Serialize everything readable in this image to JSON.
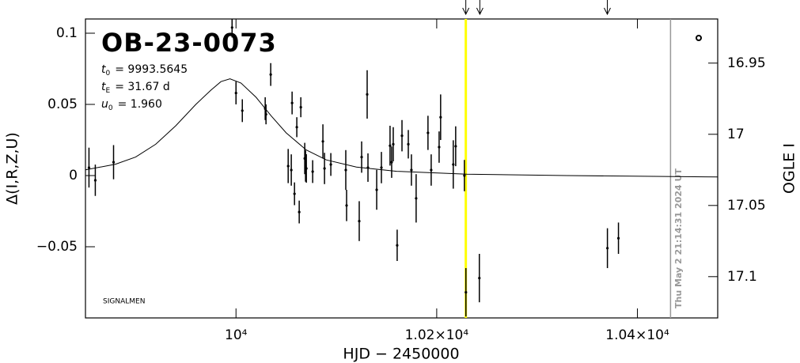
{
  "chart_data": {
    "type": "scatter",
    "title": "OB-23-0073",
    "params": [
      {
        "symbol": "t",
        "subscript": "0",
        "text": "= 9993.5645"
      },
      {
        "symbol": "t",
        "subscript": "E",
        "text": "= 31.67 d"
      },
      {
        "symbol": "u",
        "subscript": "0",
        "text": "= 1.960"
      }
    ],
    "note": "SIGNALMEN",
    "timestamp": "Thu May  2 21:14:31 2024 UT",
    "x_label": "HJD − 2450000",
    "y_label": "Δ(I,R,Z,U)",
    "y2_label": "OGLE I",
    "color": "#000000",
    "x": [
      9853.5,
      9859.8,
      9878,
      9996.1,
      10000,
      10006.3,
      10029.1,
      10029.9,
      10034.6,
      10052,
      10055.1,
      10058.3,
      10063,
      10055.9,
      10060.6,
      10064.6,
      10068.5,
      10069.3,
      10070.1,
      10076.4,
      10086.6,
      10088.2,
      10094.5,
      10109.4,
      10110.2,
      10122.8,
      10125.2,
      10130.7,
      10131.5,
      10140.2,
      10144.9,
      10153.5,
      10155.1,
      10156.7,
      10160.6,
      10165.4,
      10171.7,
      10174.8,
      10179.5,
      10191.3,
      10194.5,
      10202.4,
      10203.9,
      10216.5,
      10218.9,
      10227.6,
      10229.1,
      10242.5,
      10370.1,
      10381.1
    ],
    "values": [
      0.0056,
      -0.0033,
      0.0094,
      0.104,
      0.058,
      0.0456,
      0.047,
      0.043,
      0.071,
      0.0067,
      0.0039,
      -0.0128,
      -0.0256,
      0.051,
      0.034,
      0.048,
      0.012,
      0.0067,
      0.005,
      0.0028,
      0.024,
      0.005,
      0.0078,
      0.0039,
      -0.021,
      -0.032,
      0.013,
      0.057,
      0.0056,
      -0.01,
      0.0056,
      0.021,
      0.0094,
      0.022,
      -0.049,
      0.028,
      0.022,
      0.0039,
      -0.016,
      0.03,
      0.0039,
      0.02,
      0.041,
      0.0078,
      0.0206,
      0,
      -0.082,
      -0.072,
      -0.051,
      -0.044
    ],
    "errors": [
      0.014,
      0.011,
      0.012,
      0.007,
      0.008,
      0.008,
      0.008,
      0.007,
      0.008,
      0.012,
      0.011,
      0.008,
      0.008,
      0.008,
      0.007,
      0.007,
      0.011,
      0.011,
      0.01,
      0.008,
      0.012,
      0.011,
      0.008,
      0.014,
      0.011,
      0.014,
      0.011,
      0.017,
      0.01,
      0.014,
      0.011,
      0.014,
      0.011,
      0.012,
      0.011,
      0.011,
      0.01,
      0.011,
      0.017,
      0.012,
      0.011,
      0.011,
      0.016,
      0.017,
      0.014,
      0.011,
      0.017,
      0.017,
      0.014,
      0.011
    ],
    "model": {
      "color": "#000000",
      "x": [
        9850,
        9880,
        9900,
        9920,
        9940,
        9960,
        9975,
        9985,
        9994,
        10005,
        10020,
        10035,
        10050,
        10070,
        10090,
        10120,
        10160,
        10230,
        10330,
        10480
      ],
      "values": [
        0.004,
        0.008,
        0.013,
        0.022,
        0.035,
        0.05,
        0.06,
        0.066,
        0.068,
        0.065,
        0.055,
        0.042,
        0.03,
        0.018,
        0.011,
        0.006,
        0.003,
        0.001,
        0,
        -0.001
      ]
    },
    "vlines": [
      {
        "x": 10229,
        "color": "#ffff00"
      },
      {
        "x": 10433,
        "color": "#999999"
      }
    ],
    "arrows_x": [
      10229,
      10243,
      10370
    ],
    "xlim": [
      9850,
      10480
    ],
    "xticks": [
      {
        "value": 10000,
        "label": "10⁴"
      },
      {
        "value": 10200,
        "label": "1.02×10⁴"
      },
      {
        "value": 10400,
        "label": "1.04×10⁴"
      }
    ],
    "ylim": [
      -0.1,
      0.11
    ],
    "yticks": [
      {
        "value": -0.05,
        "label": "−0.05"
      },
      0,
      0.05,
      0.1
    ],
    "y2lim": [
      17.129,
      16.919
    ],
    "y2ticks": [
      16.95,
      17,
      17.05,
      17.1
    ]
  }
}
